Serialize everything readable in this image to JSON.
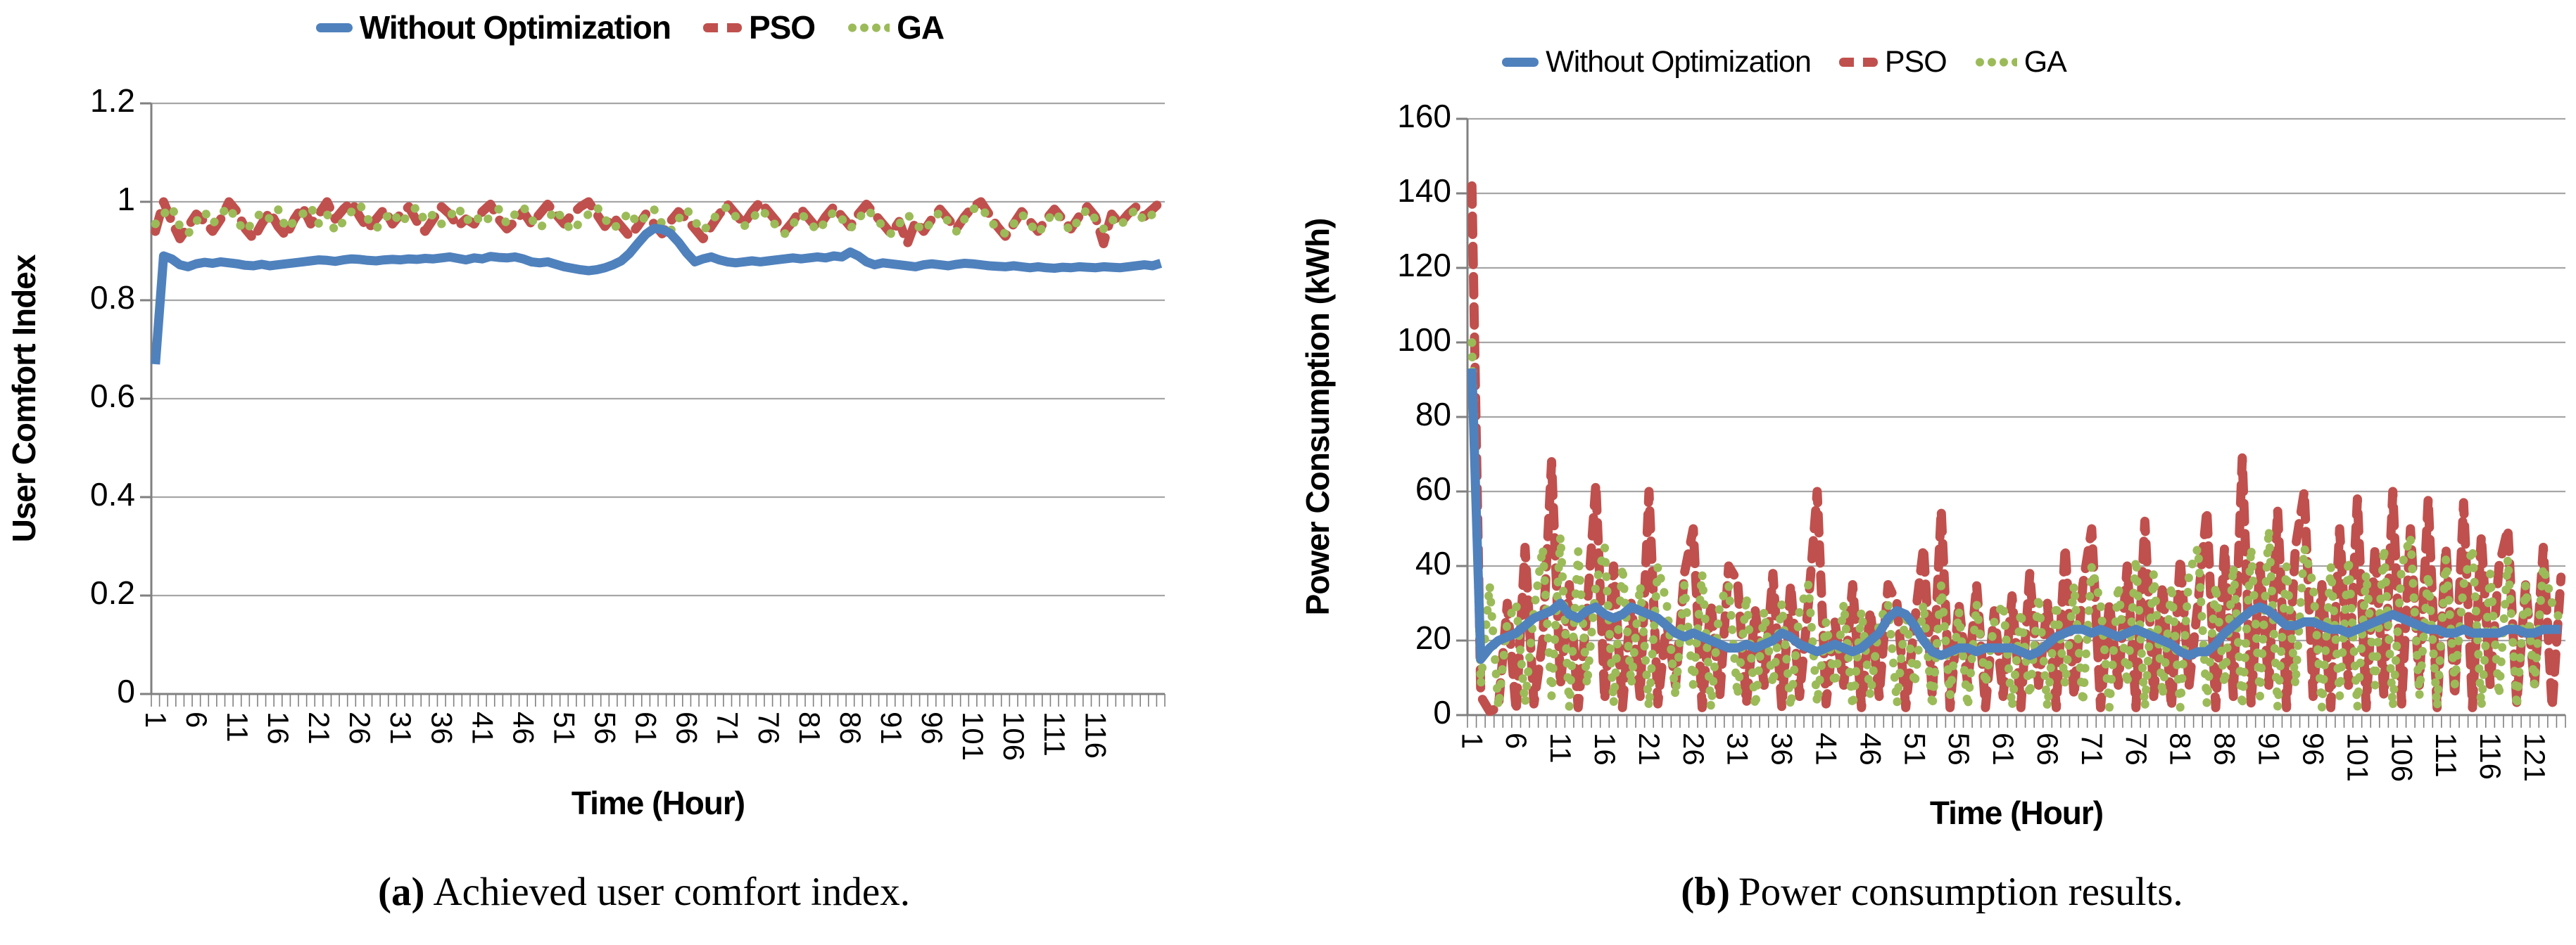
{
  "style": {
    "blue": "#4F81BD",
    "red": "#C0504D",
    "green": "#9BBB59",
    "grid_color": "#A6A6A6",
    "axis_color": "#808080",
    "text_color": "#000000"
  },
  "captions": {
    "a_tag": "(a)",
    "a_text": "Achieved user comfort index.",
    "b_tag": "(b)",
    "b_text": "Power consumption results."
  },
  "chart_data": [
    {
      "id": "a",
      "type": "line",
      "title": "",
      "xlabel": "Time (Hour)",
      "ylabel": "User Comfort Index",
      "ylim": [
        0,
        1.2
      ],
      "yticks": [
        0,
        0.2,
        0.4,
        0.6,
        0.8,
        1,
        1.2
      ],
      "ytick_labels": [
        "0",
        "0.2",
        "0.4",
        "0.6",
        "0.8",
        "1",
        "1.2"
      ],
      "xtick_labels": [
        1,
        6,
        11,
        16,
        21,
        26,
        31,
        36,
        41,
        46,
        51,
        56,
        61,
        66,
        71,
        76,
        81,
        86,
        91,
        96,
        101,
        106,
        111,
        116
      ],
      "x_hours": 124,
      "grid": true,
      "legend_position": "top-center",
      "layout": {
        "x0": 215,
        "x1": 1655,
        "yTop": 147,
        "yBot": 987,
        "ylab_x": 192,
        "ytitle_x": 50,
        "xlab_y": 1012,
        "xtitle_x": 935,
        "xtitle_y": 1158,
        "ylab_font": 46,
        "xlab_font": 42,
        "title_font": 46
      },
      "series": [
        {
          "name": "Without Optimization",
          "color": "#4F81BD",
          "dash": "solid",
          "width": 13,
          "values": [
            0.67,
            0.89,
            0.884,
            0.872,
            0.868,
            0.874,
            0.877,
            0.875,
            0.878,
            0.876,
            0.874,
            0.871,
            0.87,
            0.873,
            0.87,
            0.872,
            0.874,
            0.876,
            0.878,
            0.88,
            0.882,
            0.881,
            0.879,
            0.882,
            0.884,
            0.883,
            0.881,
            0.88,
            0.882,
            0.883,
            0.882,
            0.884,
            0.883,
            0.885,
            0.884,
            0.886,
            0.888,
            0.885,
            0.882,
            0.886,
            0.884,
            0.889,
            0.887,
            0.886,
            0.888,
            0.884,
            0.878,
            0.876,
            0.878,
            0.873,
            0.868,
            0.865,
            0.862,
            0.86,
            0.862,
            0.866,
            0.872,
            0.88,
            0.895,
            0.915,
            0.934,
            0.946,
            0.944,
            0.936,
            0.918,
            0.896,
            0.878,
            0.884,
            0.888,
            0.882,
            0.878,
            0.876,
            0.878,
            0.88,
            0.878,
            0.88,
            0.882,
            0.884,
            0.886,
            0.884,
            0.886,
            0.888,
            0.886,
            0.89,
            0.888,
            0.898,
            0.89,
            0.878,
            0.872,
            0.876,
            0.874,
            0.872,
            0.87,
            0.868,
            0.872,
            0.874,
            0.872,
            0.87,
            0.873,
            0.875,
            0.874,
            0.872,
            0.87,
            0.869,
            0.868,
            0.87,
            0.868,
            0.866,
            0.868,
            0.866,
            0.865,
            0.867,
            0.866,
            0.868,
            0.867,
            0.866,
            0.868,
            0.867,
            0.866,
            0.868,
            0.87,
            0.872,
            0.87,
            0.875
          ]
        },
        {
          "name": "PSO",
          "color": "#C0504D",
          "dash": "dash",
          "width": 13,
          "values": [
            0.94,
            1.0,
            0.96,
            0.925,
            0.95,
            0.975,
            0.96,
            0.94,
            0.965,
            1.0,
            0.98,
            0.945,
            0.925,
            0.955,
            0.98,
            0.95,
            0.93,
            0.965,
            0.99,
            0.955,
            0.975,
            1.0,
            0.965,
            0.985,
            1.0,
            0.97,
            0.945,
            0.965,
            0.985,
            0.955,
            0.975,
            0.99,
            0.96,
            0.94,
            0.965,
            0.99,
            0.975,
            0.95,
            0.965,
            0.955,
            0.98,
            0.995,
            0.965,
            0.945,
            0.96,
            0.98,
            0.955,
            0.975,
            0.995,
            0.975,
            0.955,
            0.975,
            0.99,
            1.0,
            0.975,
            0.95,
            0.97,
            0.95,
            0.93,
            0.95,
            0.975,
            0.955,
            0.935,
            0.96,
            0.98,
            0.965,
            0.945,
            0.925,
            0.95,
            0.975,
            0.995,
            0.975,
            0.955,
            0.98,
            1.0,
            0.98,
            0.96,
            0.94,
            0.96,
            0.985,
            0.965,
            0.945,
            0.97,
            0.99,
            0.97,
            0.95,
            0.975,
            0.995,
            0.975,
            0.955,
            0.935,
            0.96,
            0.915,
            0.96,
            0.94,
            0.965,
            0.985,
            0.965,
            0.945,
            0.97,
            0.99,
            1.0,
            0.975,
            0.95,
            0.93,
            0.955,
            0.98,
            0.96,
            0.94,
            0.965,
            0.985,
            0.965,
            0.945,
            0.97,
            0.99,
            0.97,
            0.915,
            0.975,
            0.955,
            0.975,
            0.99,
            0.97,
            0.985,
            1.0
          ]
        },
        {
          "name": "GA",
          "color": "#9BBB59",
          "dash": "dot",
          "width": 12,
          "values": [
            0.955,
            0.975,
            0.99,
            0.95,
            0.935,
            0.96,
            0.98,
            0.955,
            0.975,
            0.99,
            0.96,
            0.94,
            0.96,
            0.98,
            0.965,
            0.985,
            0.945,
            0.96,
            0.975,
            0.99,
            0.955,
            0.975,
            0.94,
            0.96,
            0.98,
            0.995,
            0.965,
            0.945,
            0.965,
            0.98,
            0.955,
            0.975,
            0.99,
            0.96,
            0.975,
            0.955,
            0.97,
            0.99,
            0.96,
            0.975,
            0.955,
            0.97,
            0.985,
            0.955,
            0.975,
            0.99,
            0.965,
            0.945,
            0.965,
            0.985,
            0.96,
            0.94,
            0.96,
            0.975,
            0.99,
            0.965,
            0.945,
            0.96,
            0.98,
            0.955,
            0.97,
            0.985,
            0.955,
            0.94,
            0.965,
            0.985,
            0.96,
            0.94,
            0.96,
            0.98,
            0.99,
            0.97,
            0.95,
            0.965,
            0.985,
            0.97,
            0.95,
            0.935,
            0.955,
            0.975,
            0.96,
            0.94,
            0.96,
            0.98,
            0.965,
            0.945,
            0.965,
            0.985,
            0.97,
            0.95,
            0.935,
            0.955,
            0.975,
            0.955,
            0.94,
            0.96,
            0.98,
            0.96,
            0.94,
            0.965,
            0.985,
            0.99,
            0.965,
            0.945,
            0.935,
            0.955,
            0.975,
            0.955,
            0.935,
            0.96,
            0.98,
            0.96,
            0.94,
            0.965,
            0.985,
            0.965,
            0.945,
            0.965,
            0.95,
            0.97,
            0.985,
            0.96,
            0.975,
            0.99
          ]
        }
      ]
    },
    {
      "id": "b",
      "type": "line",
      "title": "",
      "xlabel": "Time (Hour)",
      "ylabel": "Power Consumption (kWh)",
      "ylim": [
        0,
        160
      ],
      "yticks": [
        0,
        20,
        40,
        60,
        80,
        100,
        120,
        140,
        160
      ],
      "ytick_labels": [
        "0",
        "20",
        "40",
        "60",
        "80",
        "100",
        "120",
        "140",
        "160"
      ],
      "xtick_labels": [
        1,
        6,
        11,
        16,
        21,
        26,
        31,
        36,
        41,
        46,
        51,
        56,
        61,
        66,
        71,
        76,
        81,
        86,
        91,
        96,
        101,
        106,
        111,
        116,
        121
      ],
      "x_hours": 124,
      "grid": true,
      "legend_position": "top-left-of-center",
      "layout": {
        "x0": 255,
        "x1": 1815,
        "yTop": 169,
        "yBot": 1017,
        "ylab_x": 232,
        "ytitle_x": 58,
        "xlab_y": 1042,
        "xtitle_x": 1035,
        "xtitle_y": 1172,
        "ylab_font": 46,
        "xlab_font": 42,
        "title_font": 46
      },
      "series": [
        {
          "name": "Without Optimization",
          "color": "#4F81BD",
          "dash": "solid",
          "width": 13,
          "values": [
            93,
            15,
            18,
            20,
            21,
            22,
            24,
            26,
            27,
            28,
            30,
            27,
            26,
            28,
            29,
            27,
            26,
            27,
            29,
            28,
            27,
            26,
            24,
            22,
            21,
            22,
            21,
            20,
            19,
            18,
            18,
            19,
            18,
            19,
            20,
            22,
            21,
            19,
            18,
            17,
            18,
            19,
            18,
            17,
            18,
            20,
            22,
            26,
            28,
            27,
            24,
            20,
            17,
            16,
            17,
            18,
            18,
            17,
            18,
            18,
            18,
            18,
            17,
            16,
            17,
            19,
            21,
            22,
            23,
            23,
            22,
            23,
            22,
            21,
            22,
            23,
            22,
            21,
            20,
            19,
            17,
            16,
            17,
            17,
            19,
            22,
            24,
            26,
            28,
            29,
            28,
            26,
            24,
            24,
            25,
            25,
            24,
            23,
            23,
            22,
            23,
            24,
            25,
            26,
            27,
            26,
            25,
            24,
            23,
            23,
            22,
            22,
            23,
            22,
            22,
            22,
            22,
            23,
            23,
            22,
            22,
            23,
            23,
            23
          ]
        },
        {
          "name": "PSO",
          "color": "#C0504D",
          "dash": "dash",
          "width": 13,
          "values": [
            142,
            5,
            1,
            2,
            30,
            1,
            45,
            3,
            20,
            68,
            8,
            35,
            2,
            28,
            62,
            4,
            40,
            2,
            30,
            5,
            60,
            3,
            25,
            8,
            38,
            50,
            2,
            30,
            5,
            40,
            36,
            3,
            28,
            8,
            38,
            2,
            35,
            5,
            30,
            60,
            3,
            25,
            8,
            35,
            2,
            28,
            5,
            35,
            30,
            2,
            25,
            45,
            5,
            55,
            2,
            30,
            8,
            35,
            2,
            28,
            5,
            32,
            2,
            38,
            8,
            30,
            2,
            45,
            5,
            35,
            50,
            2,
            30,
            8,
            40,
            2,
            52,
            5,
            35,
            2,
            42,
            8,
            30,
            55,
            2,
            45,
            5,
            69,
            3,
            40,
            8,
            55,
            2,
            45,
            60,
            5,
            35,
            2,
            50,
            8,
            58,
            2,
            45,
            5,
            60,
            3,
            50,
            8,
            58,
            2,
            45,
            5,
            57,
            2,
            48,
            8,
            40,
            50,
            3,
            35,
            8,
            45,
            2,
            37
          ]
        },
        {
          "name": "GA",
          "color": "#9BBB59",
          "dash": "dot",
          "width": 12,
          "values": [
            100,
            8,
            35,
            2,
            25,
            30,
            3,
            28,
            45,
            5,
            48,
            2,
            44,
            8,
            35,
            45,
            3,
            40,
            8,
            35,
            2,
            40,
            30,
            5,
            35,
            8,
            38,
            2,
            30,
            35,
            5,
            32,
            2,
            28,
            8,
            30,
            2,
            28,
            35,
            3,
            25,
            8,
            30,
            2,
            28,
            5,
            25,
            30,
            3,
            28,
            8,
            30,
            2,
            35,
            5,
            28,
            2,
            30,
            8,
            25,
            30,
            2,
            28,
            5,
            32,
            2,
            30,
            8,
            35,
            3,
            40,
            30,
            2,
            35,
            8,
            42,
            2,
            38,
            5,
            35,
            2,
            38,
            45,
            3,
            35,
            8,
            40,
            2,
            45,
            5,
            50,
            2,
            40,
            8,
            45,
            35,
            2,
            40,
            5,
            42,
            2,
            38,
            8,
            45,
            2,
            40,
            48,
            5,
            38,
            2,
            42,
            8,
            35,
            45,
            2,
            38,
            5,
            42,
            2,
            35,
            8,
            40,
            30,
            25
          ]
        }
      ]
    }
  ]
}
